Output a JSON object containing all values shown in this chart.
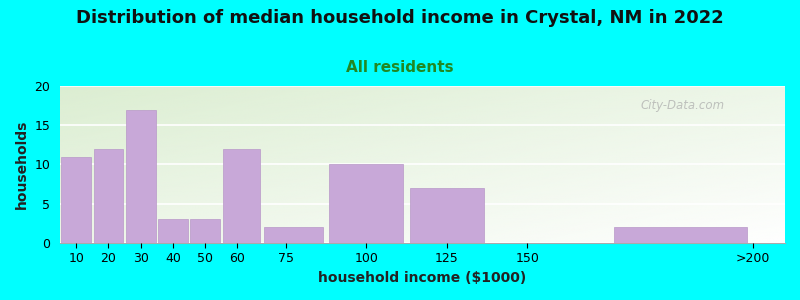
{
  "title": "Distribution of median household income in Crystal, NM in 2022",
  "subtitle": "All residents",
  "xlabel": "household income ($1000)",
  "ylabel": "households",
  "background_color": "#00FFFF",
  "bar_color": "#c8a8d8",
  "bar_edgecolor": "#b898c8",
  "categories": [
    "10",
    "20",
    "30",
    "40",
    "50",
    "60",
    "75",
    "100",
    "125",
    "150",
    ">200"
  ],
  "bin_edges": [
    5,
    15,
    25,
    35,
    45,
    55,
    67.5,
    87.5,
    112.5,
    137.5,
    175,
    220
  ],
  "values": [
    11,
    12,
    17,
    3,
    3,
    12,
    2,
    10,
    7,
    0,
    2
  ],
  "tick_positions": [
    10,
    20,
    30,
    40,
    50,
    60,
    75,
    100,
    125,
    150,
    220
  ],
  "tick_labels": [
    "10",
    "20",
    "30",
    "40",
    "50",
    "60",
    "75",
    "100",
    "125",
    "150",
    ">200"
  ],
  "ylim": [
    0,
    20
  ],
  "xlim": [
    5,
    230
  ],
  "yticks": [
    0,
    5,
    10,
    15,
    20
  ],
  "title_fontsize": 13,
  "subtitle_fontsize": 11,
  "axis_label_fontsize": 10,
  "tick_fontsize": 9,
  "watermark": "City-Data.com"
}
